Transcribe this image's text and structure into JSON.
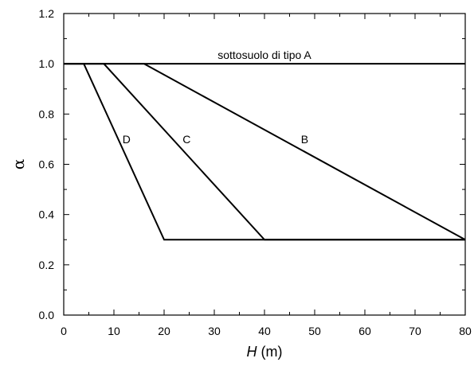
{
  "chart_data": {
    "type": "line",
    "xlabel_var": "H",
    "xlabel_unit": " (m)",
    "ylabel": "α",
    "xlim": [
      0,
      80
    ],
    "ylim": [
      0,
      1.2
    ],
    "x_ticks": [
      0,
      10,
      20,
      30,
      40,
      50,
      60,
      70,
      80
    ],
    "x_tick_labels": [
      "0",
      "10",
      "20",
      "30",
      "40",
      "50",
      "60",
      "70",
      "80"
    ],
    "y_ticks": [
      0,
      0.2,
      0.4,
      0.6,
      0.8,
      1.0,
      1.2
    ],
    "y_tick_labels": [
      "0.0",
      "0.2",
      "0.4",
      "0.6",
      "0.8",
      "1.0",
      "1.2"
    ],
    "grid": false,
    "series": [
      {
        "name": "sottosuolo di tipo A",
        "points": [
          [
            0,
            1.0
          ],
          [
            80,
            1.0
          ]
        ],
        "label_at": [
          40,
          1.035
        ],
        "label_anchor": "middle"
      },
      {
        "name": "B",
        "points": [
          [
            0,
            1.0
          ],
          [
            16,
            1.0
          ],
          [
            80,
            0.3
          ]
        ],
        "label_at": [
          48,
          0.7
        ],
        "label_anchor": "middle"
      },
      {
        "name": "C",
        "points": [
          [
            0,
            1.0
          ],
          [
            8,
            1.0
          ],
          [
            40,
            0.3
          ],
          [
            80,
            0.3
          ]
        ],
        "label_at": [
          24.5,
          0.7
        ],
        "label_anchor": "middle"
      },
      {
        "name": "D",
        "points": [
          [
            0,
            1.0
          ],
          [
            4,
            1.0
          ],
          [
            20,
            0.3
          ],
          [
            80,
            0.3
          ]
        ],
        "label_at": [
          12.5,
          0.7
        ],
        "label_anchor": "middle"
      }
    ]
  }
}
